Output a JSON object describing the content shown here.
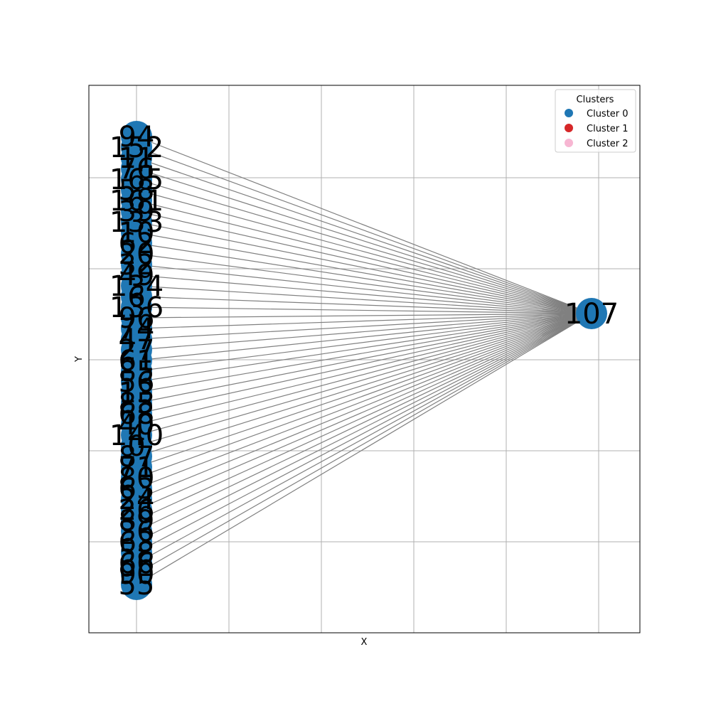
{
  "axes": {
    "xlabel": "X",
    "ylabel": "Y",
    "grid": true
  },
  "legend": {
    "title": "Clusters",
    "placement": "top-right",
    "entries": [
      {
        "label": "Cluster 0",
        "color": "#1f77b4"
      },
      {
        "label": "Cluster 1",
        "color": "#d62728"
      },
      {
        "label": "Cluster 2",
        "color": "#f7b6d2"
      }
    ]
  },
  "colors": {
    "edge": "#808080",
    "grid": "#b0b0b0",
    "node": "#1f77b4"
  },
  "hub": {
    "label": "107",
    "cluster": 0
  },
  "leaf_labels": [
    "94",
    "152",
    "11",
    "76",
    "165",
    "58",
    "161",
    "39",
    "133",
    "10",
    "62",
    "20",
    "32",
    "49",
    "134",
    "6",
    "136",
    "96",
    "74",
    "47",
    "27",
    "61",
    "85",
    "56",
    "13",
    "85",
    "68",
    "40",
    "140",
    "0",
    "87",
    "71",
    "80",
    "63",
    "24",
    "26",
    "89",
    "36",
    "63",
    "58",
    "66",
    "90",
    "55"
  ]
}
